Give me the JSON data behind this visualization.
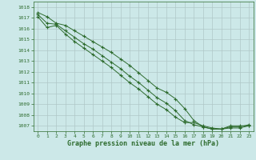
{
  "x": [
    0,
    1,
    2,
    3,
    4,
    5,
    6,
    7,
    8,
    9,
    10,
    11,
    12,
    13,
    14,
    15,
    16,
    17,
    18,
    19,
    20,
    21,
    22,
    23
  ],
  "line1": [
    1017.5,
    1017.1,
    1016.5,
    1016.3,
    1015.8,
    1015.3,
    1014.8,
    1014.3,
    1013.8,
    1013.2,
    1012.6,
    1011.9,
    1011.2,
    1010.5,
    1010.1,
    1009.5,
    1008.6,
    1007.5,
    1006.9,
    1006.7,
    1006.7,
    1007.0,
    1007.0,
    1007.0
  ],
  "line2": [
    1017.3,
    1016.5,
    1016.4,
    1015.8,
    1015.2,
    1014.6,
    1014.1,
    1013.5,
    1012.9,
    1012.3,
    1011.6,
    1011.0,
    1010.3,
    1009.6,
    1009.1,
    1008.4,
    1007.5,
    1007.1,
    1006.9,
    1006.7,
    1006.7,
    1006.8,
    1006.8,
    1007.0
  ],
  "line3": [
    1017.1,
    1016.1,
    1016.3,
    1015.5,
    1014.8,
    1014.2,
    1013.6,
    1013.0,
    1012.4,
    1011.7,
    1011.0,
    1010.4,
    1009.7,
    1009.0,
    1008.5,
    1007.8,
    1007.3,
    1007.3,
    1007.0,
    1006.8,
    1006.7,
    1006.9,
    1006.9,
    1007.1
  ],
  "ylim_min": 1006.5,
  "ylim_max": 1018.5,
  "yticks": [
    1007,
    1008,
    1009,
    1010,
    1011,
    1012,
    1013,
    1014,
    1015,
    1016,
    1017,
    1018
  ],
  "xticks": [
    0,
    1,
    2,
    3,
    4,
    5,
    6,
    7,
    8,
    9,
    10,
    11,
    12,
    13,
    14,
    15,
    16,
    17,
    18,
    19,
    20,
    21,
    22,
    23
  ],
  "xlabel": "Graphe pression niveau de la mer (hPa)",
  "line_color": "#2d6b2d",
  "bg_color": "#cce8e8",
  "grid_color": "#b0c8c8",
  "marker": "+"
}
